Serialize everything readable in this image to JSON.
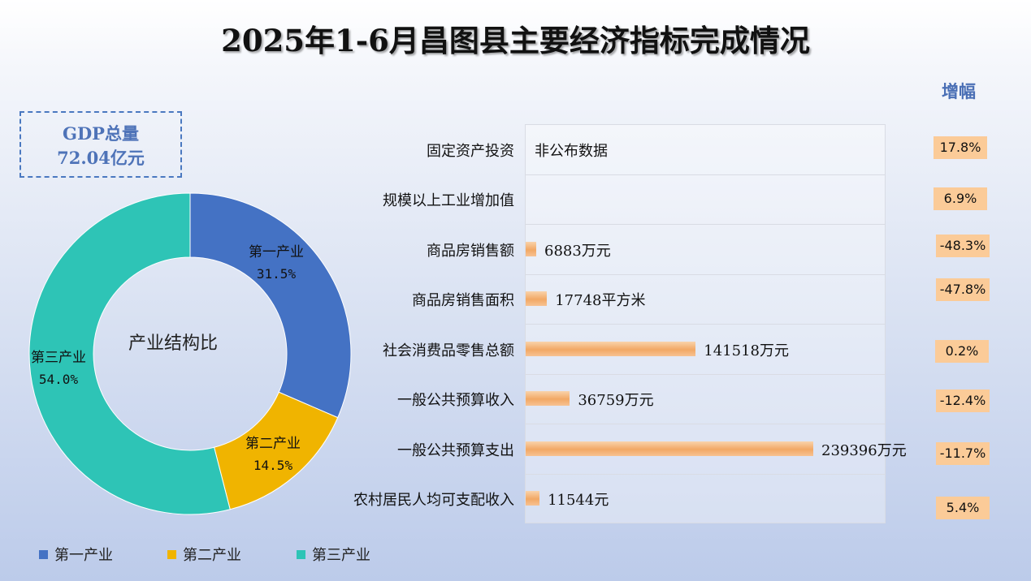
{
  "title": "2025年1-6月昌图县主要经济指标完成情况",
  "gdp_box": {
    "line1": "GDP总量",
    "line2": "72.04亿元"
  },
  "increase_header": "增幅",
  "colors": {
    "primary": "#4472c4",
    "secondary": "#f0b400",
    "tertiary": "#2ec4b6",
    "bar": "#f4b27a",
    "increase_box": "#fbcb98"
  },
  "chart_data": [
    {
      "type": "pie",
      "subtype": "donut",
      "center_label": "产业结构比",
      "slices": [
        {
          "label": "第一产业",
          "value": 31.5,
          "display": "31.5%",
          "color": "#4472c4"
        },
        {
          "label": "第二产业",
          "value": 14.5,
          "display": "14.5%",
          "color": "#f0b400"
        },
        {
          "label": "第三产业",
          "value": 54.0,
          "display": "54.0%",
          "color": "#2ec4b6"
        }
      ],
      "legend": [
        "第一产业",
        "第二产业",
        "第三产业"
      ],
      "legend_position": "bottom"
    },
    {
      "type": "bar",
      "orientation": "horizontal",
      "xmax": 239396,
      "categories": [
        "固定资产投资",
        "规模以上工业增加值",
        "商品房销售额",
        "商品房销售面积",
        "社会消费品零售总额",
        "一般公共预算收入",
        "一般公共预算支出",
        "农村居民人均可支配收入"
      ],
      "values": [
        null,
        null,
        6883,
        17748,
        141518,
        36759,
        239396,
        11544
      ],
      "units": [
        "",
        "",
        "万元",
        "平方米",
        "万元",
        "万元",
        "万元",
        "元"
      ],
      "value_labels": [
        "非公布数据",
        "",
        "6883万元",
        "17748平方米",
        "141518万元",
        "36759万元",
        "239396万元",
        "11544元"
      ],
      "increase_rates": [
        "17.8%",
        "6.9%",
        "-48.3%",
        "-47.8%",
        "0.2%",
        "-12.4%",
        "-11.7%",
        "5.4%"
      ]
    }
  ]
}
